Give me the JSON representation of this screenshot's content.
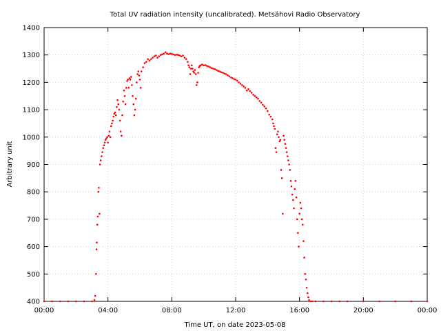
{
  "chart_data": {
    "type": "scatter",
    "title": "Total UV radiation intensity (uncalibrated). Metsähovi Radio Observatory",
    "xlabel": "Time UT, on date 2023-05-08",
    "ylabel": "Arbitrary unit",
    "x_unit": "hours UT",
    "xlim": [
      0,
      24
    ],
    "ylim": [
      400,
      1400
    ],
    "x_tick_labels": [
      "00:00",
      "04:00",
      "08:00",
      "12:00",
      "16:00",
      "20:00",
      "00:00"
    ],
    "y_tick_labels": [
      "400",
      "500",
      "600",
      "700",
      "800",
      "900",
      "1000",
      "1100",
      "1200",
      "1300",
      "1400"
    ],
    "grid": true,
    "legend": "none",
    "series_color": "#ff0000",
    "points": [
      [
        0.0,
        400
      ],
      [
        0.5,
        400
      ],
      [
        1.0,
        400
      ],
      [
        1.5,
        400
      ],
      [
        2.0,
        400
      ],
      [
        2.5,
        400
      ],
      [
        3.0,
        400
      ],
      [
        3.15,
        405
      ],
      [
        3.2,
        420
      ],
      [
        3.25,
        500
      ],
      [
        3.28,
        590
      ],
      [
        3.3,
        615
      ],
      [
        3.33,
        680
      ],
      [
        3.36,
        710
      ],
      [
        3.4,
        800
      ],
      [
        3.43,
        815
      ],
      [
        3.47,
        720
      ],
      [
        3.5,
        900
      ],
      [
        3.55,
        915
      ],
      [
        3.6,
        930
      ],
      [
        3.65,
        945
      ],
      [
        3.7,
        960
      ],
      [
        3.75,
        970
      ],
      [
        3.8,
        980
      ],
      [
        3.85,
        990
      ],
      [
        3.9,
        995
      ],
      [
        3.95,
        1000
      ],
      [
        4.0,
        980
      ],
      [
        4.05,
        1005
      ],
      [
        4.1,
        1020
      ],
      [
        4.15,
        1000
      ],
      [
        4.2,
        1040
      ],
      [
        4.25,
        1050
      ],
      [
        4.3,
        1060
      ],
      [
        4.35,
        1075
      ],
      [
        4.4,
        1085
      ],
      [
        4.45,
        1090
      ],
      [
        4.5,
        1080
      ],
      [
        4.55,
        1110
      ],
      [
        4.6,
        1135
      ],
      [
        4.65,
        1120
      ],
      [
        4.7,
        1100
      ],
      [
        4.75,
        1060
      ],
      [
        4.8,
        1020
      ],
      [
        4.85,
        1005
      ],
      [
        4.9,
        1080
      ],
      [
        4.95,
        1130
      ],
      [
        5.0,
        1170
      ],
      [
        5.05,
        1150
      ],
      [
        5.1,
        1120
      ],
      [
        5.15,
        1180
      ],
      [
        5.2,
        1205
      ],
      [
        5.25,
        1210
      ],
      [
        5.3,
        1180
      ],
      [
        5.35,
        1215
      ],
      [
        5.4,
        1210
      ],
      [
        5.45,
        1220
      ],
      [
        5.5,
        1190
      ],
      [
        5.55,
        1150
      ],
      [
        5.6,
        1120
      ],
      [
        5.65,
        1080
      ],
      [
        5.7,
        1100
      ],
      [
        5.75,
        1140
      ],
      [
        5.8,
        1200
      ],
      [
        5.85,
        1230
      ],
      [
        5.9,
        1240
      ],
      [
        5.95,
        1225
      ],
      [
        6.0,
        1210
      ],
      [
        6.05,
        1180
      ],
      [
        6.1,
        1240
      ],
      [
        6.2,
        1255
      ],
      [
        6.3,
        1270
      ],
      [
        6.4,
        1275
      ],
      [
        6.5,
        1285
      ],
      [
        6.6,
        1280
      ],
      [
        6.7,
        1285
      ],
      [
        6.8,
        1290
      ],
      [
        6.9,
        1295
      ],
      [
        7.0,
        1298
      ],
      [
        7.1,
        1290
      ],
      [
        7.2,
        1295
      ],
      [
        7.3,
        1300
      ],
      [
        7.4,
        1302
      ],
      [
        7.5,
        1305
      ],
      [
        7.6,
        1310
      ],
      [
        7.7,
        1305
      ],
      [
        7.8,
        1303
      ],
      [
        7.9,
        1305
      ],
      [
        8.0,
        1304
      ],
      [
        8.1,
        1302
      ],
      [
        8.2,
        1300
      ],
      [
        8.3,
        1301
      ],
      [
        8.4,
        1300
      ],
      [
        8.5,
        1298
      ],
      [
        8.6,
        1295
      ],
      [
        8.7,
        1298
      ],
      [
        8.8,
        1290
      ],
      [
        8.9,
        1285
      ],
      [
        9.0,
        1275
      ],
      [
        9.05,
        1262
      ],
      [
        9.1,
        1255
      ],
      [
        9.15,
        1230
      ],
      [
        9.2,
        1250
      ],
      [
        9.25,
        1262
      ],
      [
        9.3,
        1250
      ],
      [
        9.35,
        1240
      ],
      [
        9.4,
        1235
      ],
      [
        9.45,
        1245
      ],
      [
        9.5,
        1230
      ],
      [
        9.55,
        1190
      ],
      [
        9.6,
        1200
      ],
      [
        9.65,
        1235
      ],
      [
        9.7,
        1255
      ],
      [
        9.75,
        1260
      ],
      [
        9.8,
        1262
      ],
      [
        9.9,
        1265
      ],
      [
        10.0,
        1262
      ],
      [
        10.1,
        1263
      ],
      [
        10.2,
        1260
      ],
      [
        10.3,
        1258
      ],
      [
        10.4,
        1255
      ],
      [
        10.5,
        1252
      ],
      [
        10.6,
        1250
      ],
      [
        10.7,
        1248
      ],
      [
        10.8,
        1245
      ],
      [
        10.9,
        1242
      ],
      [
        11.0,
        1240
      ],
      [
        11.1,
        1237
      ],
      [
        11.2,
        1235
      ],
      [
        11.3,
        1232
      ],
      [
        11.4,
        1230
      ],
      [
        11.5,
        1226
      ],
      [
        11.6,
        1222
      ],
      [
        11.7,
        1218
      ],
      [
        11.8,
        1215
      ],
      [
        11.9,
        1212
      ],
      [
        12.0,
        1210
      ],
      [
        12.1,
        1206
      ],
      [
        12.2,
        1200
      ],
      [
        12.3,
        1195
      ],
      [
        12.4,
        1190
      ],
      [
        12.5,
        1185
      ],
      [
        12.6,
        1180
      ],
      [
        12.7,
        1170
      ],
      [
        12.8,
        1175
      ],
      [
        12.9,
        1168
      ],
      [
        13.0,
        1162
      ],
      [
        13.1,
        1155
      ],
      [
        13.2,
        1150
      ],
      [
        13.3,
        1145
      ],
      [
        13.4,
        1140
      ],
      [
        13.5,
        1132
      ],
      [
        13.6,
        1126
      ],
      [
        13.7,
        1118
      ],
      [
        13.8,
        1112
      ],
      [
        13.9,
        1105
      ],
      [
        14.0,
        1095
      ],
      [
        14.1,
        1082
      ],
      [
        14.2,
        1075
      ],
      [
        14.3,
        1065
      ],
      [
        14.35,
        1050
      ],
      [
        14.4,
        1040
      ],
      [
        14.45,
        1030
      ],
      [
        14.5,
        960
      ],
      [
        14.55,
        945
      ],
      [
        14.6,
        1010
      ],
      [
        14.65,
        1020
      ],
      [
        14.7,
        1000
      ],
      [
        14.75,
        985
      ],
      [
        14.8,
        990
      ],
      [
        14.85,
        880
      ],
      [
        14.9,
        850
      ],
      [
        14.95,
        720
      ],
      [
        15.0,
        1005
      ],
      [
        15.05,
        990
      ],
      [
        15.1,
        975
      ],
      [
        15.15,
        960
      ],
      [
        15.2,
        945
      ],
      [
        15.25,
        930
      ],
      [
        15.3,
        915
      ],
      [
        15.35,
        900
      ],
      [
        15.4,
        880
      ],
      [
        15.45,
        840
      ],
      [
        15.5,
        820
      ],
      [
        15.55,
        790
      ],
      [
        15.6,
        770
      ],
      [
        15.65,
        740
      ],
      [
        15.7,
        810
      ],
      [
        15.75,
        840
      ],
      [
        15.8,
        780
      ],
      [
        15.85,
        700
      ],
      [
        15.9,
        650
      ],
      [
        15.95,
        600
      ],
      [
        16.0,
        720
      ],
      [
        16.05,
        760
      ],
      [
        16.1,
        740
      ],
      [
        16.15,
        700
      ],
      [
        16.2,
        680
      ],
      [
        16.25,
        620
      ],
      [
        16.3,
        560
      ],
      [
        16.35,
        500
      ],
      [
        16.4,
        480
      ],
      [
        16.45,
        450
      ],
      [
        16.5,
        430
      ],
      [
        16.55,
        415
      ],
      [
        16.6,
        405
      ],
      [
        16.7,
        400
      ],
      [
        16.8,
        400
      ],
      [
        17.0,
        400
      ],
      [
        17.5,
        400
      ],
      [
        18.0,
        400
      ],
      [
        18.5,
        400
      ],
      [
        19.0,
        400
      ],
      [
        20.0,
        400
      ],
      [
        21.0,
        400
      ],
      [
        22.0,
        400
      ],
      [
        23.0,
        400
      ],
      [
        24.0,
        400
      ]
    ]
  }
}
